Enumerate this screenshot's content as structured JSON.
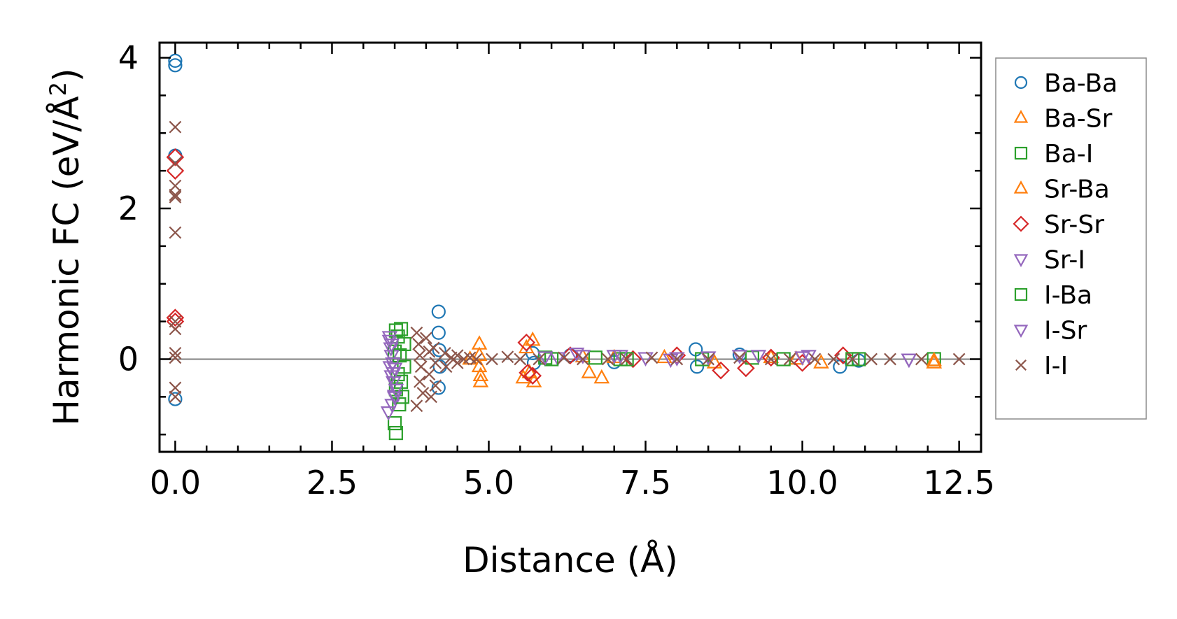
{
  "chart_data": {
    "type": "scatter",
    "xlabel": "Distance (Å)",
    "ylabel_main": "Harmonic FC (eV/Å",
    "ylabel_sup": "2",
    "ylabel_close": ")",
    "xlim": [
      -0.25,
      12.85
    ],
    "ylim": [
      -1.23,
      4.2
    ],
    "xticks": [
      0.0,
      2.5,
      5.0,
      7.5,
      10.0,
      12.5
    ],
    "xtick_labels": [
      "0.0",
      "2.5",
      "5.0",
      "7.5",
      "10.0",
      "12.5"
    ],
    "yticks": [
      0,
      2,
      4
    ],
    "ytick_labels": [
      "0",
      "2",
      "4"
    ],
    "x_minor_step": 0.5,
    "y_minor_step": 0.5,
    "zero_line": true,
    "legend_position": "right",
    "series": [
      {
        "name": "Ba-Ba",
        "marker": "circle",
        "color": "#1f77b4",
        "points": [
          [
            0,
            3.96
          ],
          [
            0,
            3.9
          ],
          [
            0,
            2.7
          ],
          [
            0,
            -0.53
          ],
          [
            4.2,
            0.63
          ],
          [
            4.2,
            0.35
          ],
          [
            4.21,
            0.12
          ],
          [
            4.22,
            -0.1
          ],
          [
            4.2,
            -0.38
          ],
          [
            5.7,
            0.08
          ],
          [
            5.72,
            -0.05
          ],
          [
            6.3,
            0.05
          ],
          [
            7.0,
            -0.04
          ],
          [
            8.3,
            0.13
          ],
          [
            8.32,
            -0.1
          ],
          [
            9.0,
            0.06
          ],
          [
            10.6,
            -0.1
          ],
          [
            10.9,
            -0.02
          ]
        ]
      },
      {
        "name": "Ba-Sr",
        "marker": "triangle-up",
        "color": "#ff7f0e",
        "points": [
          [
            4.85,
            0.05
          ],
          [
            4.85,
            -0.1
          ],
          [
            4.87,
            -0.3
          ],
          [
            5.55,
            -0.25
          ],
          [
            5.7,
            0.25
          ],
          [
            5.72,
            -0.3
          ],
          [
            6.6,
            -0.18
          ],
          [
            6.8,
            -0.25
          ],
          [
            7.8,
            0.02
          ],
          [
            9.5,
            0.02
          ],
          [
            10.3,
            -0.05
          ],
          [
            12.1,
            -0.05
          ]
        ]
      },
      {
        "name": "Ba-I",
        "marker": "square",
        "color": "#2ca02c",
        "points": [
          [
            3.52,
            0.38
          ],
          [
            3.55,
            0.3
          ],
          [
            3.5,
            0.1
          ],
          [
            3.55,
            -0.2
          ],
          [
            3.52,
            -0.4
          ],
          [
            3.57,
            -0.6
          ],
          [
            3.5,
            -0.85
          ],
          [
            3.52,
            -0.98
          ],
          [
            3.65,
            0.2
          ],
          [
            3.65,
            -0.1
          ],
          [
            5.9,
            0.02
          ],
          [
            7.1,
            0.0
          ],
          [
            9.2,
            0.02
          ],
          [
            10.9,
            0.0
          ],
          [
            12.1,
            0.0
          ]
        ]
      },
      {
        "name": "Sr-Ba",
        "marker": "triangle-up",
        "color": "#ff7f0e",
        "points": [
          [
            4.85,
            0.2
          ],
          [
            4.87,
            -0.22
          ],
          [
            4.7,
            0.0
          ],
          [
            5.6,
            0.15
          ],
          [
            5.65,
            -0.18
          ],
          [
            6.5,
            0.03
          ],
          [
            7.0,
            0.02
          ],
          [
            8.6,
            -0.05
          ],
          [
            9.9,
            0.0
          ],
          [
            12.1,
            -0.02
          ]
        ]
      },
      {
        "name": "Sr-Sr",
        "marker": "diamond",
        "color": "#d62728",
        "points": [
          [
            0,
            2.68
          ],
          [
            0,
            2.5
          ],
          [
            0,
            0.55
          ],
          [
            0,
            0.5
          ],
          [
            5.6,
            0.22
          ],
          [
            5.62,
            -0.18
          ],
          [
            5.7,
            -0.22
          ],
          [
            6.3,
            0.05
          ],
          [
            7.3,
            0.0
          ],
          [
            8.0,
            0.05
          ],
          [
            8.7,
            -0.15
          ],
          [
            9.1,
            -0.12
          ],
          [
            9.5,
            0.02
          ],
          [
            10.0,
            -0.05
          ],
          [
            10.65,
            0.05
          ]
        ]
      },
      {
        "name": "Sr-I",
        "marker": "triangle-down",
        "color": "#9467bd",
        "points": [
          [
            3.42,
            0.25
          ],
          [
            3.44,
            0.15
          ],
          [
            3.45,
            0.05
          ],
          [
            3.43,
            -0.1
          ],
          [
            3.45,
            -0.22
          ],
          [
            3.48,
            -0.3
          ],
          [
            3.5,
            -0.48
          ],
          [
            3.46,
            -0.6
          ],
          [
            3.4,
            -0.7
          ],
          [
            3.5,
            -0.12
          ],
          [
            6.1,
            0.02
          ],
          [
            6.4,
            0.08
          ],
          [
            7.0,
            0.05
          ],
          [
            7.5,
            0.02
          ],
          [
            8.0,
            0.02
          ],
          [
            9.0,
            0.05
          ],
          [
            10.0,
            0.03
          ],
          [
            11.7,
            0.0
          ]
        ]
      },
      {
        "name": "I-Ba",
        "marker": "square",
        "color": "#2ca02c",
        "points": [
          [
            3.6,
            0.4
          ],
          [
            3.58,
            0.05
          ],
          [
            3.6,
            -0.3
          ],
          [
            3.62,
            -0.5
          ],
          [
            6.0,
            0.0
          ],
          [
            6.7,
            0.02
          ],
          [
            7.2,
            0.0
          ],
          [
            8.4,
            0.0
          ],
          [
            9.7,
            0.0
          ],
          [
            10.8,
            0.0
          ]
        ]
      },
      {
        "name": "I-Sr",
        "marker": "triangle-down",
        "color": "#9467bd",
        "points": [
          [
            3.42,
            0.3
          ],
          [
            3.45,
            0.2
          ],
          [
            3.47,
            -0.05
          ],
          [
            3.48,
            -0.18
          ],
          [
            3.5,
            -0.5
          ],
          [
            3.52,
            -0.4
          ],
          [
            5.9,
            0.03
          ],
          [
            6.5,
            0.05
          ],
          [
            7.1,
            0.05
          ],
          [
            7.9,
            0.0
          ],
          [
            8.5,
            0.03
          ],
          [
            9.3,
            0.05
          ],
          [
            10.1,
            0.05
          ],
          [
            11.7,
            0.0
          ]
        ]
      },
      {
        "name": "I-I",
        "marker": "x",
        "color": "#8c564b",
        "points": [
          [
            0,
            3.08
          ],
          [
            0,
            2.6
          ],
          [
            0,
            2.3
          ],
          [
            0,
            2.18
          ],
          [
            0,
            2.15
          ],
          [
            0,
            1.68
          ],
          [
            0,
            0.5
          ],
          [
            0,
            0.4
          ],
          [
            0,
            0.08
          ],
          [
            0,
            0.02
          ],
          [
            0,
            -0.38
          ],
          [
            0,
            -0.5
          ],
          [
            3.85,
            0.35
          ],
          [
            3.88,
            0.2
          ],
          [
            3.9,
            0.05
          ],
          [
            3.92,
            -0.1
          ],
          [
            3.9,
            -0.3
          ],
          [
            3.95,
            -0.45
          ],
          [
            3.85,
            -0.62
          ],
          [
            4.0,
            0.28
          ],
          [
            4.05,
            0.1
          ],
          [
            4.05,
            -0.2
          ],
          [
            4.08,
            -0.5
          ],
          [
            4.12,
            0.15
          ],
          [
            4.15,
            -0.05
          ],
          [
            4.15,
            -0.35
          ],
          [
            4.3,
            0.08
          ],
          [
            4.32,
            -0.1
          ],
          [
            4.4,
            0.02
          ],
          [
            4.5,
            0.05
          ],
          [
            4.5,
            -0.05
          ],
          [
            4.6,
            0.0
          ],
          [
            4.7,
            0.02
          ],
          [
            4.8,
            0.0
          ],
          [
            5.05,
            0.0
          ],
          [
            5.3,
            0.03
          ],
          [
            5.5,
            0.0
          ],
          [
            5.8,
            0.0
          ],
          [
            6.2,
            0.02
          ],
          [
            6.5,
            0.0
          ],
          [
            6.9,
            0.0
          ],
          [
            7.2,
            0.0
          ],
          [
            7.6,
            0.02
          ],
          [
            8.0,
            0.0
          ],
          [
            8.5,
            0.0
          ],
          [
            9.0,
            0.02
          ],
          [
            9.5,
            0.0
          ],
          [
            9.8,
            0.0
          ],
          [
            10.2,
            0.0
          ],
          [
            10.5,
            0.0
          ],
          [
            10.8,
            0.0
          ],
          [
            11.1,
            0.0
          ],
          [
            11.4,
            0.0
          ],
          [
            11.9,
            0.0
          ],
          [
            12.5,
            0.0
          ]
        ]
      }
    ]
  }
}
